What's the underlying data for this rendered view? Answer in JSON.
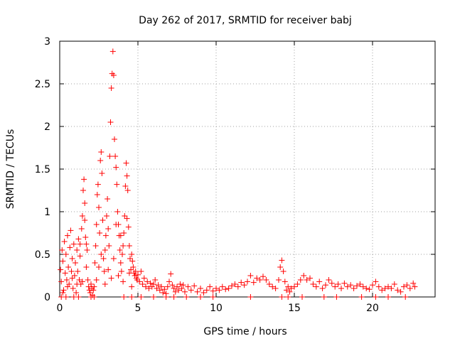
{
  "chart_data": {
    "type": "scatter",
    "title": "Day 262 of 2017, SRMTID for receiver babj",
    "xlabel": "GPS time / hours",
    "ylabel": "SRMTID / TECUs",
    "xlim": [
      0,
      24
    ],
    "ylim": [
      0,
      3
    ],
    "xticks": [
      0,
      5,
      10,
      15,
      20
    ],
    "yticks": [
      0,
      0.5,
      1,
      1.5,
      2,
      2.5,
      3
    ],
    "ytick_labels": [
      "0",
      "0.5",
      "1",
      "1.5",
      "2",
      "2.5",
      "3"
    ],
    "grid": true,
    "marker": "+",
    "color": "#ff0000",
    "series": [
      {
        "name": "SRMTID",
        "points": [
          [
            0.05,
            0.32
          ],
          [
            0.1,
            0.18
          ],
          [
            0.15,
            0.55
          ],
          [
            0.2,
            0.42
          ],
          [
            0.25,
            0.08
          ],
          [
            0.3,
            0.65
          ],
          [
            0.35,
            0.28
          ],
          [
            0.4,
            0.5
          ],
          [
            0.45,
            0.2
          ],
          [
            0.5,
            0.72
          ],
          [
            0.55,
            0.35
          ],
          [
            0.6,
            0.15
          ],
          [
            0.65,
            0.58
          ],
          [
            0.7,
            0.78
          ],
          [
            0.75,
            0.3
          ],
          [
            0.8,
            0.45
          ],
          [
            0.85,
            0.1
          ],
          [
            0.9,
            0.62
          ],
          [
            0.95,
            0.25
          ],
          [
            1.0,
            0.4
          ],
          [
            1.05,
            0.05
          ],
          [
            1.1,
            0.55
          ],
          [
            1.15,
            0.3
          ],
          [
            1.2,
            0.68
          ],
          [
            1.25,
            0.2
          ],
          [
            1.3,
            0.48
          ],
          [
            1.35,
            0.15
          ],
          [
            1.4,
            0.8
          ],
          [
            1.45,
            0.95
          ],
          [
            1.5,
            1.25
          ],
          [
            1.55,
            1.38
          ],
          [
            1.6,
            1.1
          ],
          [
            1.65,
            0.7
          ],
          [
            1.7,
            0.35
          ],
          [
            1.75,
            0.55
          ],
          [
            1.8,
            0.2
          ],
          [
            1.85,
            0.12
          ],
          [
            1.9,
            0.08
          ],
          [
            1.95,
            0.05
          ],
          [
            2.0,
            0.15
          ],
          [
            2.05,
            0.1
          ],
          [
            2.1,
            0.02
          ],
          [
            2.15,
            0.08
          ],
          [
            2.2,
            0.12
          ],
          [
            2.25,
            0.4
          ],
          [
            2.3,
            0.6
          ],
          [
            2.35,
            0.85
          ],
          [
            2.4,
            1.2
          ],
          [
            2.45,
            1.32
          ],
          [
            2.5,
            1.05
          ],
          [
            2.55,
            0.75
          ],
          [
            2.6,
            1.6
          ],
          [
            2.65,
            1.7
          ],
          [
            2.7,
            1.45
          ],
          [
            2.75,
            0.9
          ],
          [
            2.8,
            0.45
          ],
          [
            2.85,
            0.3
          ],
          [
            2.9,
            0.55
          ],
          [
            2.95,
            0.72
          ],
          [
            3.0,
            0.95
          ],
          [
            3.05,
            1.15
          ],
          [
            3.1,
            0.8
          ],
          [
            3.15,
            0.6
          ],
          [
            3.2,
            1.65
          ],
          [
            3.25,
            2.05
          ],
          [
            3.3,
            2.45
          ],
          [
            3.35,
            2.62
          ],
          [
            3.4,
            2.88
          ],
          [
            3.45,
            2.6
          ],
          [
            3.5,
            1.85
          ],
          [
            3.55,
            1.65
          ],
          [
            3.6,
            1.52
          ],
          [
            3.65,
            1.32
          ],
          [
            3.7,
            1.0
          ],
          [
            3.75,
            0.85
          ],
          [
            3.8,
            0.72
          ],
          [
            3.85,
            0.55
          ],
          [
            3.9,
            0.4
          ],
          [
            3.95,
            0.3
          ],
          [
            4.0,
            0.5
          ],
          [
            4.05,
            0.6
          ],
          [
            4.1,
            0.75
          ],
          [
            4.15,
            0.95
          ],
          [
            4.2,
            1.3
          ],
          [
            4.25,
            1.57
          ],
          [
            4.3,
            1.42
          ],
          [
            4.35,
            1.25
          ],
          [
            4.4,
            0.82
          ],
          [
            4.45,
            0.6
          ],
          [
            4.5,
            0.45
          ],
          [
            4.55,
            0.32
          ],
          [
            4.6,
            0.5
          ],
          [
            4.65,
            0.42
          ],
          [
            4.7,
            0.35
          ],
          [
            4.75,
            0.28
          ],
          [
            4.8,
            0.25
          ],
          [
            4.85,
            0.3
          ],
          [
            4.9,
            0.22
          ],
          [
            4.95,
            0.2
          ],
          [
            5.0,
            0.26
          ],
          [
            5.1,
            0.18
          ],
          [
            5.2,
            0.3
          ],
          [
            5.3,
            0.15
          ],
          [
            5.4,
            0.22
          ],
          [
            5.5,
            0.12
          ],
          [
            5.6,
            0.18
          ],
          [
            5.7,
            0.1
          ],
          [
            5.8,
            0.16
          ],
          [
            5.9,
            0.12
          ],
          [
            6.0,
            0.15
          ],
          [
            6.1,
            0.2
          ],
          [
            6.2,
            0.1
          ],
          [
            6.3,
            0.14
          ],
          [
            6.4,
            0.08
          ],
          [
            6.5,
            0.12
          ],
          [
            6.6,
            0.05
          ],
          [
            6.7,
            0.09
          ],
          [
            6.8,
            0.04
          ],
          [
            6.9,
            0.12
          ],
          [
            7.0,
            0.18
          ],
          [
            7.1,
            0.27
          ],
          [
            7.2,
            0.14
          ],
          [
            7.3,
            0.1
          ],
          [
            7.4,
            0.06
          ],
          [
            7.5,
            0.12
          ],
          [
            7.6,
            0.08
          ],
          [
            7.7,
            0.15
          ],
          [
            7.8,
            0.1
          ],
          [
            7.9,
            0.14
          ],
          [
            8.0,
            0.06
          ],
          [
            8.2,
            0.12
          ],
          [
            8.4,
            0.08
          ],
          [
            8.6,
            0.13
          ],
          [
            8.8,
            0.06
          ],
          [
            9.0,
            0.1
          ],
          [
            9.2,
            0.05
          ],
          [
            9.4,
            0.08
          ],
          [
            9.6,
            0.12
          ],
          [
            9.8,
            0.07
          ],
          [
            10.0,
            0.1
          ],
          [
            10.2,
            0.08
          ],
          [
            10.4,
            0.12
          ],
          [
            10.6,
            0.09
          ],
          [
            10.8,
            0.1
          ],
          [
            11.0,
            0.13
          ],
          [
            11.2,
            0.15
          ],
          [
            11.4,
            0.12
          ],
          [
            11.6,
            0.17
          ],
          [
            11.8,
            0.14
          ],
          [
            12.0,
            0.18
          ],
          [
            12.2,
            0.25
          ],
          [
            12.4,
            0.17
          ],
          [
            12.6,
            0.22
          ],
          [
            12.8,
            0.2
          ],
          [
            13.0,
            0.24
          ],
          [
            13.2,
            0.2
          ],
          [
            13.4,
            0.15
          ],
          [
            13.6,
            0.12
          ],
          [
            13.8,
            0.1
          ],
          [
            14.0,
            0.2
          ],
          [
            14.1,
            0.35
          ],
          [
            14.2,
            0.43
          ],
          [
            14.3,
            0.3
          ],
          [
            14.4,
            0.18
          ],
          [
            14.5,
            0.08
          ],
          [
            14.6,
            0.12
          ],
          [
            14.7,
            0.06
          ],
          [
            14.8,
            0.1
          ],
          [
            15.0,
            0.12
          ],
          [
            15.2,
            0.15
          ],
          [
            15.4,
            0.2
          ],
          [
            15.6,
            0.25
          ],
          [
            15.8,
            0.2
          ],
          [
            16.0,
            0.22
          ],
          [
            16.2,
            0.15
          ],
          [
            16.4,
            0.12
          ],
          [
            16.6,
            0.18
          ],
          [
            16.8,
            0.1
          ],
          [
            17.0,
            0.14
          ],
          [
            17.2,
            0.2
          ],
          [
            17.4,
            0.16
          ],
          [
            17.6,
            0.12
          ],
          [
            17.8,
            0.15
          ],
          [
            18.0,
            0.1
          ],
          [
            18.2,
            0.16
          ],
          [
            18.4,
            0.12
          ],
          [
            18.6,
            0.14
          ],
          [
            18.8,
            0.1
          ],
          [
            19.0,
            0.13
          ],
          [
            19.2,
            0.15
          ],
          [
            19.4,
            0.12
          ],
          [
            19.6,
            0.1
          ],
          [
            19.8,
            0.09
          ],
          [
            20.0,
            0.14
          ],
          [
            20.2,
            0.18
          ],
          [
            20.4,
            0.12
          ],
          [
            20.6,
            0.08
          ],
          [
            20.8,
            0.1
          ],
          [
            21.0,
            0.12
          ],
          [
            21.2,
            0.1
          ],
          [
            21.4,
            0.15
          ],
          [
            21.6,
            0.08
          ],
          [
            21.8,
            0.06
          ],
          [
            22.0,
            0.12
          ],
          [
            22.2,
            0.14
          ],
          [
            22.4,
            0.1
          ],
          [
            22.6,
            0.16
          ],
          [
            22.7,
            0.12
          ],
          [
            1.45,
            0.18
          ],
          [
            1.6,
            0.9
          ],
          [
            1.7,
            0.62
          ],
          [
            2.35,
            0.2
          ],
          [
            2.5,
            0.35
          ],
          [
            2.65,
            0.5
          ],
          [
            2.9,
            0.15
          ],
          [
            3.1,
            0.32
          ],
          [
            3.3,
            0.22
          ],
          [
            3.45,
            0.45
          ],
          [
            3.6,
            0.85
          ],
          [
            3.75,
            0.25
          ],
          [
            3.9,
            0.72
          ],
          [
            4.05,
            0.18
          ],
          [
            4.3,
            0.92
          ],
          [
            4.45,
            0.28
          ],
          [
            4.6,
            0.12
          ],
          [
            0.2,
            0.05
          ],
          [
            0.5,
            0.12
          ],
          [
            0.8,
            0.22
          ],
          [
            1.1,
            0.15
          ],
          [
            1.3,
            0.62
          ],
          [
            0.1,
            0.0
          ],
          [
            0.4,
            0.0
          ],
          [
            0.9,
            0.0
          ],
          [
            1.2,
            0.0
          ],
          [
            2.0,
            0.0
          ],
          [
            2.2,
            0.0
          ],
          [
            4.1,
            0.0
          ],
          [
            4.6,
            0.0
          ],
          [
            5.2,
            0.0
          ],
          [
            6.0,
            0.0
          ],
          [
            6.8,
            0.0
          ],
          [
            7.3,
            0.0
          ],
          [
            8.1,
            0.0
          ],
          [
            9.0,
            0.0
          ],
          [
            9.8,
            0.0
          ],
          [
            12.2,
            0.0
          ],
          [
            14.2,
            0.0
          ],
          [
            14.6,
            0.0
          ],
          [
            15.5,
            0.0
          ],
          [
            16.9,
            0.0
          ],
          [
            17.7,
            0.0
          ],
          [
            19.3,
            0.0
          ],
          [
            20.2,
            0.0
          ],
          [
            21.0,
            0.0
          ],
          [
            22.1,
            0.0
          ]
        ]
      }
    ]
  }
}
